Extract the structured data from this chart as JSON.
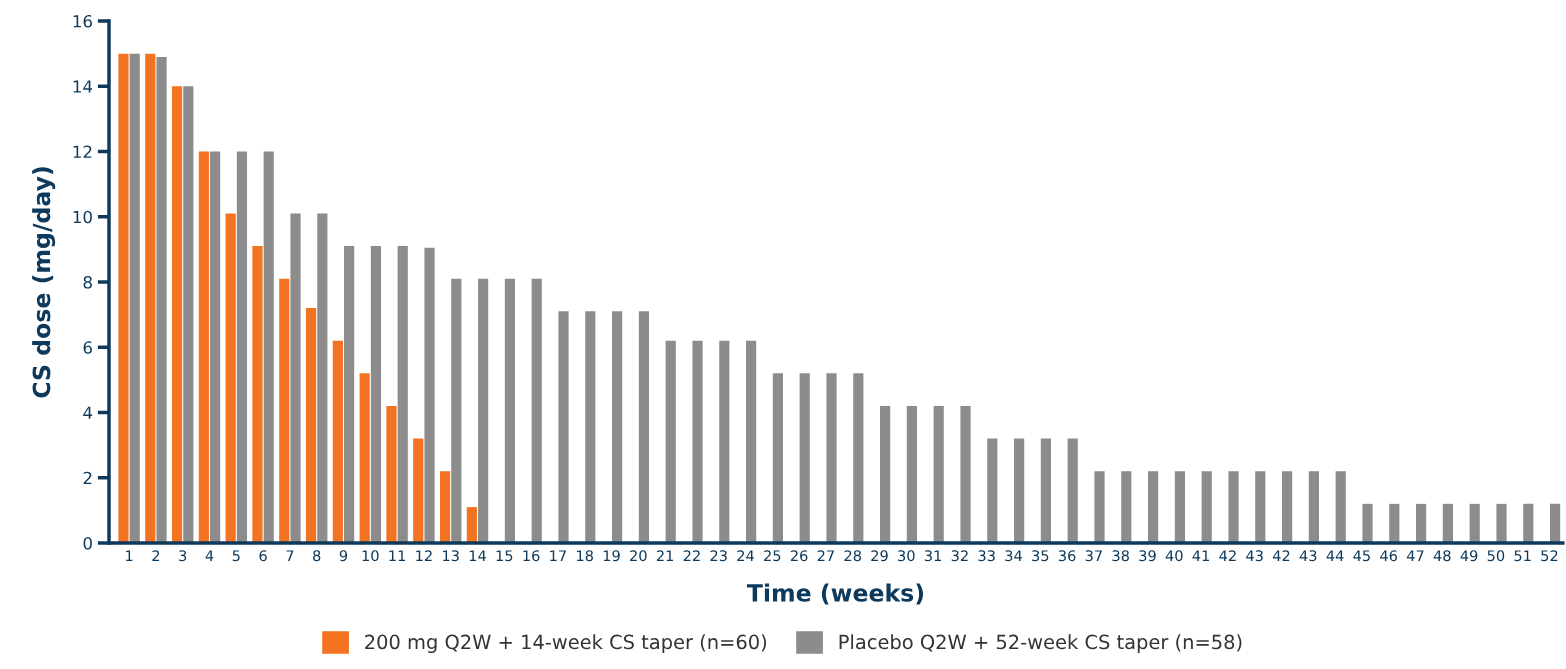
{
  "chart_data": {
    "type": "bar",
    "xlabel": "Time (weeks)",
    "ylabel": "CS dose (mg/day)",
    "categories": [
      "1",
      "2",
      "3",
      "4",
      "5",
      "6",
      "7",
      "8",
      "9",
      "10",
      "11",
      "12",
      "13",
      "14",
      "15",
      "16",
      "17",
      "18",
      "19",
      "20",
      "21",
      "22",
      "23",
      "24",
      "25",
      "26",
      "27",
      "28",
      "29",
      "30",
      "31",
      "32",
      "33",
      "34",
      "35",
      "36",
      "37",
      "38",
      "39",
      "40",
      "41",
      "42",
      "43",
      "42",
      "43",
      "44",
      "45",
      "46",
      "47",
      "48",
      "49",
      "50",
      "51",
      "52"
    ],
    "series": [
      {
        "name": "200 mg Q2W + 14-week CS taper (n=60)",
        "color": "#f47321",
        "values": [
          15,
          15,
          14,
          12,
          10.1,
          9.1,
          8.1,
          7.2,
          6.2,
          5.2,
          4.2,
          3.2,
          2.2,
          1.1,
          null,
          null,
          null,
          null,
          null,
          null,
          null,
          null,
          null,
          null,
          null,
          null,
          null,
          null,
          null,
          null,
          null,
          null,
          null,
          null,
          null,
          null,
          null,
          null,
          null,
          null,
          null,
          null,
          null,
          null,
          null,
          null,
          null,
          null,
          null,
          null,
          null,
          null,
          null,
          null
        ]
      },
      {
        "name": "Placebo Q2W + 52-week CS taper (n=58)",
        "color": "#8c8c8c",
        "values": [
          15,
          14.9,
          14,
          12,
          12,
          12,
          10.1,
          10.1,
          9.1,
          9.1,
          9.1,
          9.05,
          8.1,
          8.1,
          8.1,
          8.1,
          7.1,
          7.1,
          7.1,
          7.1,
          6.2,
          6.2,
          6.2,
          6.2,
          5.2,
          5.2,
          5.2,
          5.2,
          4.2,
          4.2,
          4.2,
          4.2,
          3.2,
          3.2,
          3.2,
          3.2,
          2.2,
          2.2,
          2.2,
          2.2,
          2.2,
          2.2,
          2.2,
          2.2,
          2.2,
          2.2,
          1.2,
          1.2,
          1.2,
          1.2,
          1.2,
          1.2,
          1.2,
          1.2
        ]
      }
    ],
    "ylim": [
      0,
      16
    ],
    "yticks": [
      0,
      2,
      4,
      6,
      8,
      10,
      12,
      14,
      16
    ],
    "grid": false,
    "legend": "bottom"
  }
}
